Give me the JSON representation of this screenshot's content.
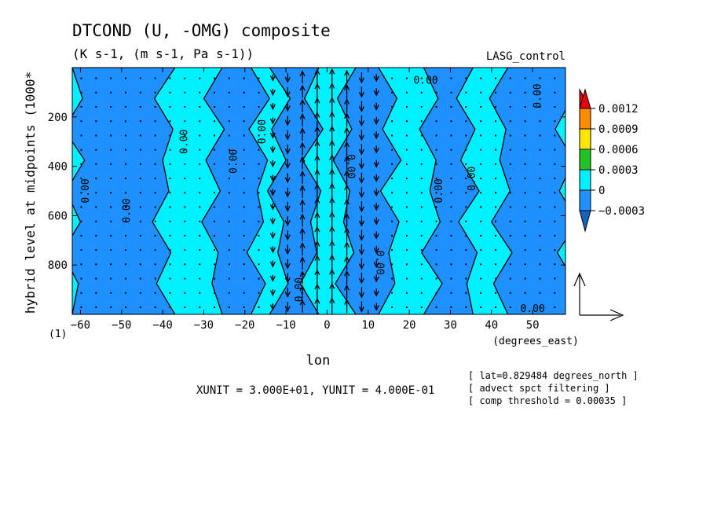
{
  "chart_data": {
    "type": "heatmap",
    "title": "DTCOND (U, -OMG) composite",
    "subtitle": "(K s-1, (m s-1, Pa s-1))",
    "run_label": "LASG_control",
    "xlabel": "lon",
    "x_units": "(degrees_east)",
    "ylabel": "hybrid level at midpoints (1000*",
    "y_units_suffix": "(1)",
    "xlim": [
      -62,
      58
    ],
    "ylim": [
      1000,
      0
    ],
    "x_ticks": [
      -60,
      -50,
      -40,
      -30,
      -20,
      -10,
      0,
      10,
      20,
      30,
      40,
      50
    ],
    "y_ticks": [
      200,
      400,
      600,
      800
    ],
    "colorbar": {
      "levels": [
        "0.0012",
        "0.0009",
        "0.0006",
        "0.0003",
        "0",
        "-0.0003"
      ],
      "colors": [
        "#e8000b",
        "#ff8c00",
        "#ffe600",
        "#22c322",
        "#00f0ff",
        "#1e90ff",
        "#1565c0"
      ]
    },
    "contour_label": "0.00",
    "contour_regions": [
      {
        "value": -0.0003,
        "lon_range": [
          -62,
          -40
        ],
        "note": "negative"
      },
      {
        "value": 0.0,
        "lon_range": [
          -40,
          -28
        ],
        "note": "zero band"
      },
      {
        "value": -0.0003,
        "lon_range": [
          -28,
          -17
        ],
        "note": "negative"
      },
      {
        "value": 0.0,
        "lon_range": [
          -17,
          -12
        ],
        "note": "zero band"
      },
      {
        "value": -0.0003,
        "lon_range": [
          -12,
          -4
        ],
        "note": "negative"
      },
      {
        "value": 0.0,
        "lon_range": [
          -4,
          4
        ],
        "note": "zero band"
      },
      {
        "value": -0.0003,
        "lon_range": [
          4,
          15
        ],
        "note": "negative"
      },
      {
        "value": 0.0,
        "lon_range": [
          15,
          25
        ],
        "note": "zero band"
      },
      {
        "value": -0.0003,
        "lon_range": [
          25,
          34
        ],
        "note": "negative"
      },
      {
        "value": 0.0,
        "lon_range": [
          34,
          42
        ],
        "note": "zero band"
      },
      {
        "value": -0.0003,
        "lon_range": [
          42,
          58
        ],
        "note": "negative"
      }
    ],
    "vector_reference": {
      "xunit": "3.000E+01",
      "yunit": "4.000E-01"
    },
    "vector_unit_text": "XUNIT = 3.000E+01, YUNIT = 4.000E-01",
    "info_lines": [
      "[ lat=0.829484 degrees_north ]",
      "[ advect spct filtering ]",
      "[ comp threshold = 0.00035 ]"
    ]
  }
}
